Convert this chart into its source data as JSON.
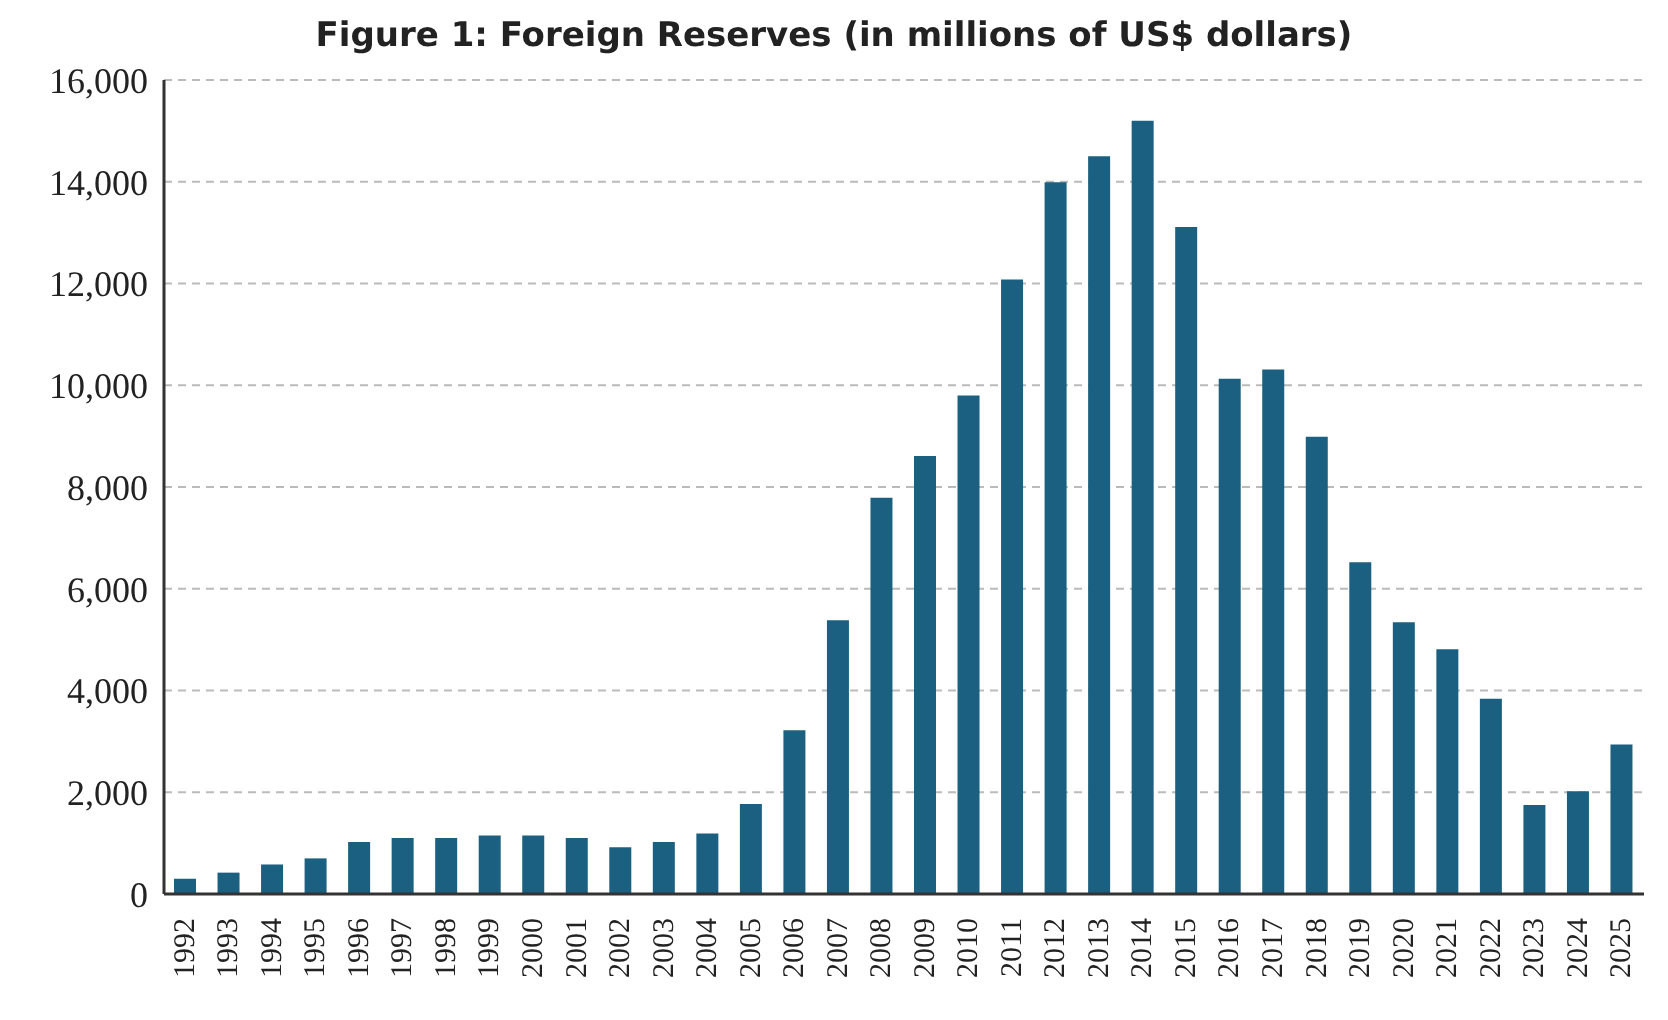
{
  "chart_data": {
    "type": "bar",
    "title": "Figure 1: Foreign Reserves (in millions of US$ dollars)",
    "categories": [
      "1992",
      "1993",
      "1994",
      "1995",
      "1996",
      "1997",
      "1998",
      "1999",
      "2000",
      "2001",
      "2002",
      "2003",
      "2004",
      "2005",
      "2006",
      "2007",
      "2008",
      "2009",
      "2010",
      "2011",
      "2012",
      "2013",
      "2014",
      "2015",
      "2016",
      "2017",
      "2018",
      "2019",
      "2020",
      "2021",
      "2022",
      "2023",
      "2024",
      "2025"
    ],
    "values": [
      300,
      420,
      580,
      700,
      1020,
      1100,
      1100,
      1150,
      1150,
      1100,
      920,
      1020,
      1190,
      1770,
      3220,
      5380,
      7790,
      8610,
      9800,
      12080,
      13990,
      14500,
      15200,
      13110,
      10130,
      10310,
      8990,
      6520,
      5340,
      4810,
      3840,
      1750,
      2020,
      2940
    ],
    "color": "#1b6080",
    "ylim": [
      0,
      16000
    ],
    "yticks": [
      0,
      {
        "value": 2000,
        "label": "2,000"
      },
      {
        "value": 4000,
        "label": "4,000"
      },
      {
        "value": 6000,
        "label": "6,000"
      },
      {
        "value": 8000,
        "label": "8,000"
      },
      {
        "value": 10000,
        "label": "10,000"
      },
      {
        "value": 12000,
        "label": "12,000"
      },
      {
        "value": 14000,
        "label": "14,000"
      },
      {
        "value": 16000,
        "label": "16,000"
      }
    ],
    "grid": "y"
  }
}
